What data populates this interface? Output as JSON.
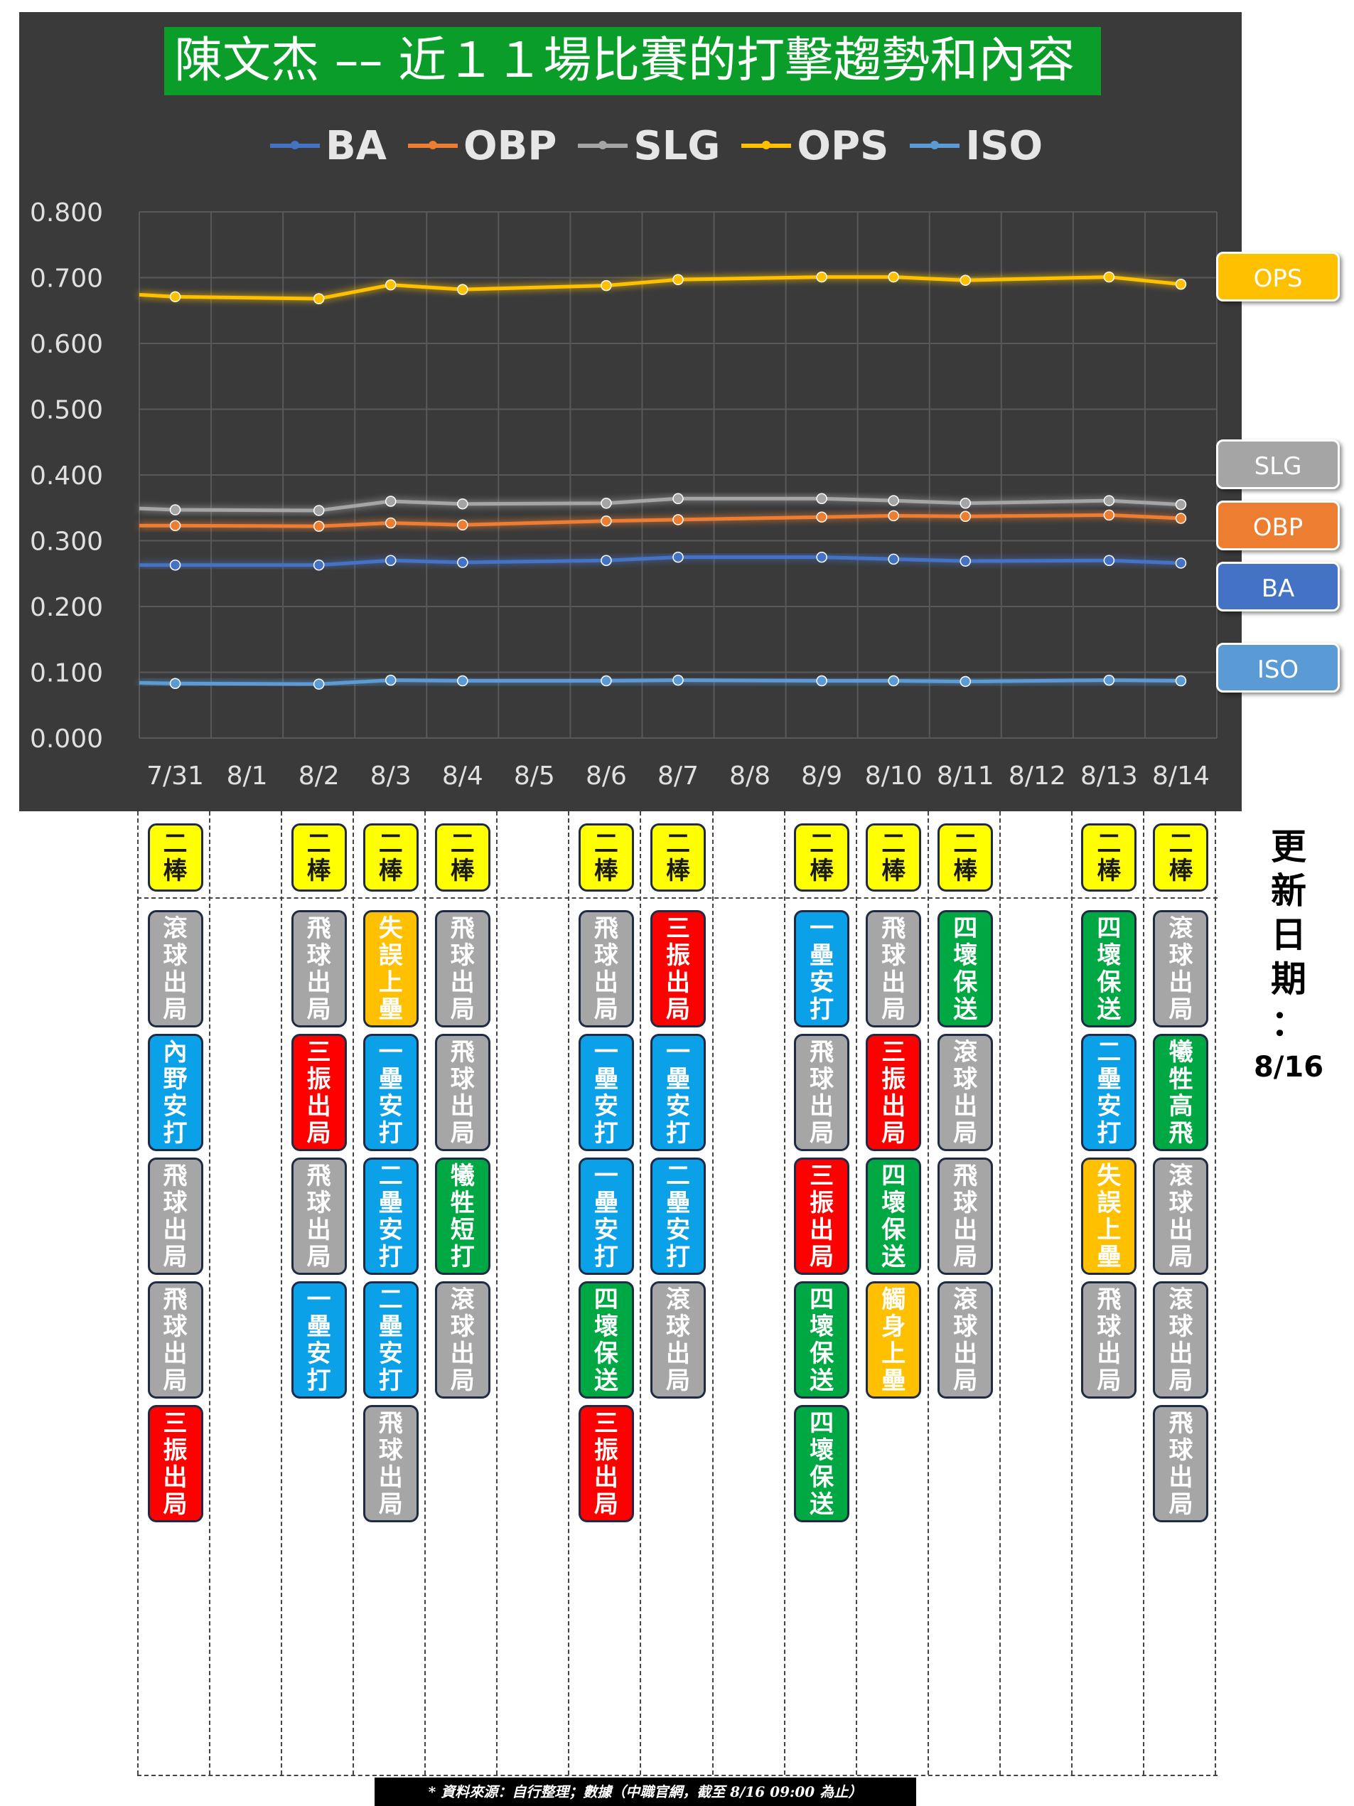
{
  "title": "陳文杰 –– 近１１場比賽的打擊趨勢和內容",
  "update_label": "更新日期：8/16",
  "source_note": "* 資料來源：自行整理；數據（中職官網，截至 8/16 09:00 為止）",
  "colors": {
    "BA": "#4472c4",
    "OBP": "#ed7d31",
    "SLG": "#a5a5a5",
    "OPS": "#ffc000",
    "ISO": "#5b9bd5"
  },
  "side_tags": [
    "OPS",
    "SLG",
    "OBP",
    "BA",
    "ISO"
  ],
  "chart_data": {
    "type": "line",
    "categories": [
      "7/31",
      "8/1",
      "8/2",
      "8/3",
      "8/4",
      "8/5",
      "8/6",
      "8/7",
      "8/8",
      "8/9",
      "8/10",
      "8/11",
      "8/12",
      "8/13",
      "8/14"
    ],
    "y_ticks": [
      "0.000",
      "0.100",
      "0.200",
      "0.300",
      "0.400",
      "0.500",
      "0.600",
      "0.700",
      "0.800"
    ],
    "ylim": [
      0,
      0.8
    ],
    "grid": "vertical and horizontal",
    "legend_position": "top",
    "series": [
      {
        "name": "BA",
        "color": "#4472c4",
        "points": [
          [
            "7/31",
            0.263
          ],
          [
            "8/2",
            0.263
          ],
          [
            "8/3",
            0.27
          ],
          [
            "8/4",
            0.267
          ],
          [
            "8/6",
            0.27
          ],
          [
            "8/7",
            0.275
          ],
          [
            "8/9",
            0.275
          ],
          [
            "8/10",
            0.272
          ],
          [
            "8/11",
            0.269
          ],
          [
            "8/13",
            0.27
          ],
          [
            "8/14",
            0.266
          ]
        ],
        "start_value": 0.263
      },
      {
        "name": "OBP",
        "color": "#ed7d31",
        "points": [
          [
            "7/31",
            0.323
          ],
          [
            "8/2",
            0.322
          ],
          [
            "8/3",
            0.327
          ],
          [
            "8/4",
            0.324
          ],
          [
            "8/6",
            0.33
          ],
          [
            "8/7",
            0.332
          ],
          [
            "8/9",
            0.336
          ],
          [
            "8/10",
            0.338
          ],
          [
            "8/11",
            0.337
          ],
          [
            "8/13",
            0.339
          ],
          [
            "8/14",
            0.334
          ]
        ],
        "start_value": 0.323
      },
      {
        "name": "SLG",
        "color": "#a5a5a5",
        "points": [
          [
            "7/31",
            0.347
          ],
          [
            "8/2",
            0.346
          ],
          [
            "8/3",
            0.36
          ],
          [
            "8/4",
            0.356
          ],
          [
            "8/6",
            0.357
          ],
          [
            "8/7",
            0.364
          ],
          [
            "8/9",
            0.364
          ],
          [
            "8/10",
            0.361
          ],
          [
            "8/11",
            0.357
          ],
          [
            "8/13",
            0.361
          ],
          [
            "8/14",
            0.355
          ]
        ],
        "start_value": 0.349
      },
      {
        "name": "OPS",
        "color": "#ffc000",
        "points": [
          [
            "7/31",
            0.671
          ],
          [
            "8/2",
            0.668
          ],
          [
            "8/3",
            0.689
          ],
          [
            "8/4",
            0.682
          ],
          [
            "8/6",
            0.688
          ],
          [
            "8/7",
            0.697
          ],
          [
            "8/9",
            0.701
          ],
          [
            "8/10",
            0.701
          ],
          [
            "8/11",
            0.696
          ],
          [
            "8/13",
            0.701
          ],
          [
            "8/14",
            0.69
          ]
        ],
        "start_value": 0.674
      },
      {
        "name": "ISO",
        "color": "#5b9bd5",
        "points": [
          [
            "7/31",
            0.083
          ],
          [
            "8/2",
            0.082
          ],
          [
            "8/3",
            0.088
          ],
          [
            "8/4",
            0.087
          ],
          [
            "8/6",
            0.087
          ],
          [
            "8/7",
            0.088
          ],
          [
            "8/9",
            0.087
          ],
          [
            "8/10",
            0.087
          ],
          [
            "8/11",
            0.086
          ],
          [
            "8/13",
            0.088
          ],
          [
            "8/14",
            0.087
          ]
        ],
        "start_value": 0.084
      }
    ]
  },
  "games": [
    {
      "date": "7/31",
      "order": "二棒",
      "results": [
        {
          "text": "滾球出局",
          "color": "gray"
        },
        {
          "text": "內野安打",
          "color": "blue"
        },
        {
          "text": "飛球出局",
          "color": "gray"
        },
        {
          "text": "飛球出局",
          "color": "gray"
        },
        {
          "text": "三振出局",
          "color": "red"
        }
      ]
    },
    {
      "date": "8/1",
      "order": "",
      "results": []
    },
    {
      "date": "8/2",
      "order": "二棒",
      "results": [
        {
          "text": "飛球出局",
          "color": "gray"
        },
        {
          "text": "三振出局",
          "color": "red"
        },
        {
          "text": "飛球出局",
          "color": "gray"
        },
        {
          "text": "一壘安打",
          "color": "blue"
        }
      ]
    },
    {
      "date": "8/3",
      "order": "二棒",
      "results": [
        {
          "text": "失誤上壘",
          "color": "orange"
        },
        {
          "text": "一壘安打",
          "color": "blue"
        },
        {
          "text": "二壘安打",
          "color": "blue"
        },
        {
          "text": "二壘安打",
          "color": "blue"
        },
        {
          "text": "飛球出局",
          "color": "gray"
        }
      ]
    },
    {
      "date": "8/4",
      "order": "二棒",
      "results": [
        {
          "text": "飛球出局",
          "color": "gray"
        },
        {
          "text": "飛球出局",
          "color": "gray"
        },
        {
          "text": "犧牲短打",
          "color": "green"
        },
        {
          "text": "滾球出局",
          "color": "gray"
        }
      ]
    },
    {
      "date": "8/5",
      "order": "",
      "results": []
    },
    {
      "date": "8/6",
      "order": "二棒",
      "results": [
        {
          "text": "飛球出局",
          "color": "gray"
        },
        {
          "text": "一壘安打",
          "color": "blue"
        },
        {
          "text": "一壘安打",
          "color": "blue"
        },
        {
          "text": "四壞保送",
          "color": "green"
        },
        {
          "text": "三振出局",
          "color": "red"
        }
      ]
    },
    {
      "date": "8/7",
      "order": "二棒",
      "results": [
        {
          "text": "三振出局",
          "color": "red"
        },
        {
          "text": "一壘安打",
          "color": "blue"
        },
        {
          "text": "二壘安打",
          "color": "blue"
        },
        {
          "text": "滾球出局",
          "color": "gray"
        }
      ]
    },
    {
      "date": "8/8",
      "order": "",
      "results": []
    },
    {
      "date": "8/9",
      "order": "二棒",
      "results": [
        {
          "text": "一壘安打",
          "color": "blue"
        },
        {
          "text": "飛球出局",
          "color": "gray"
        },
        {
          "text": "三振出局",
          "color": "red"
        },
        {
          "text": "四壞保送",
          "color": "green"
        },
        {
          "text": "四壞保送",
          "color": "green"
        }
      ]
    },
    {
      "date": "8/10",
      "order": "二棒",
      "results": [
        {
          "text": "飛球出局",
          "color": "gray"
        },
        {
          "text": "三振出局",
          "color": "red"
        },
        {
          "text": "四壞保送",
          "color": "green"
        },
        {
          "text": "觸身上壘",
          "color": "orange"
        }
      ]
    },
    {
      "date": "8/11",
      "order": "二棒",
      "results": [
        {
          "text": "四壞保送",
          "color": "green"
        },
        {
          "text": "滾球出局",
          "color": "gray"
        },
        {
          "text": "飛球出局",
          "color": "gray"
        },
        {
          "text": "滾球出局",
          "color": "gray"
        }
      ]
    },
    {
      "date": "8/12",
      "order": "",
      "results": []
    },
    {
      "date": "8/13",
      "order": "二棒",
      "results": [
        {
          "text": "四壞保送",
          "color": "green"
        },
        {
          "text": "二壘安打",
          "color": "blue"
        },
        {
          "text": "失誤上壘",
          "color": "orange"
        },
        {
          "text": "飛球出局",
          "color": "gray"
        }
      ]
    },
    {
      "date": "8/14",
      "order": "二棒",
      "results": [
        {
          "text": "滾球出局",
          "color": "gray"
        },
        {
          "text": "犧牲高飛",
          "color": "green"
        },
        {
          "text": "滾球出局",
          "color": "gray"
        },
        {
          "text": "滾球出局",
          "color": "gray"
        },
        {
          "text": "飛球出局",
          "color": "gray"
        }
      ]
    }
  ]
}
